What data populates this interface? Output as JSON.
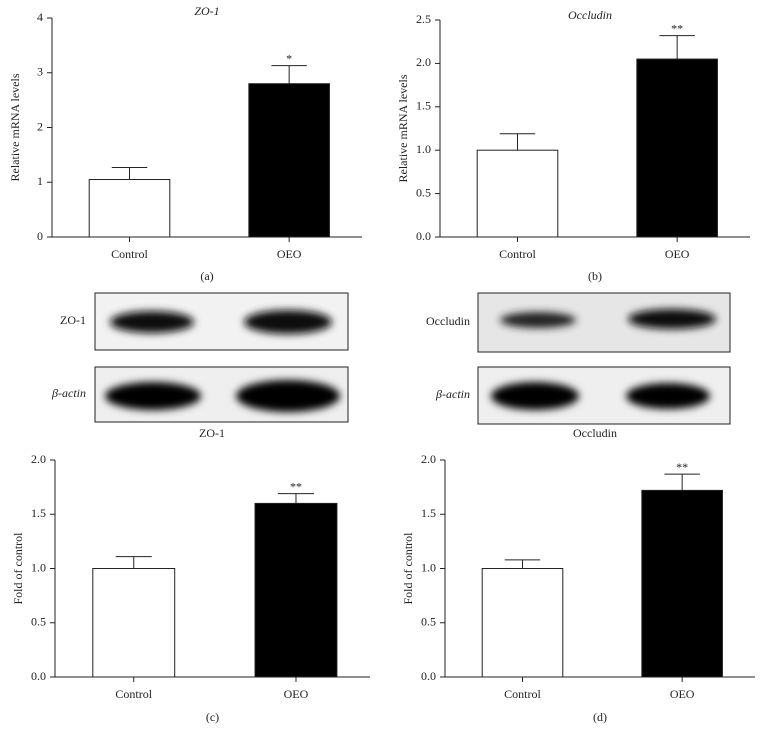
{
  "chart_data": [
    {
      "type": "bar",
      "title": "ZO-1",
      "title_italic": true,
      "ylabel": "Relative mRNA levels",
      "categories": [
        "Control",
        "OEO"
      ],
      "values": [
        1.05,
        2.8
      ],
      "errors": [
        0.22,
        0.33
      ],
      "colors": [
        "#ffffff",
        "#000000"
      ],
      "annotation": "*",
      "ylim": [
        0,
        4
      ],
      "yticks": [
        0,
        1,
        2,
        3,
        4
      ],
      "panel": "(a)"
    },
    {
      "type": "bar",
      "title": "Occludin",
      "title_italic": true,
      "ylabel": "Relative mRNA levels",
      "categories": [
        "Control",
        "OEO"
      ],
      "values": [
        1.0,
        2.05
      ],
      "errors": [
        0.19,
        0.27
      ],
      "colors": [
        "#ffffff",
        "#000000"
      ],
      "annotation": "**",
      "ylim": [
        0,
        2.5
      ],
      "yticks": [
        {
          "value": 0,
          "label": "0.0"
        },
        0.5,
        {
          "value": 1,
          "label": "1.0"
        },
        1.5,
        {
          "value": 2,
          "label": "2.0"
        },
        2.5
      ],
      "panel": "(b)"
    },
    {
      "type": "bar",
      "title": "ZO-1",
      "title_italic": false,
      "ylabel": "Fold of control",
      "categories": [
        "Control",
        "OEO"
      ],
      "values": [
        1.0,
        1.6
      ],
      "errors": [
        0.11,
        0.09
      ],
      "colors": [
        "#ffffff",
        "#000000"
      ],
      "annotation": "**",
      "ylim": [
        0,
        2
      ],
      "yticks": [
        {
          "value": 0,
          "label": "0.0"
        },
        0.5,
        {
          "value": 1,
          "label": "1.0"
        },
        1.5,
        {
          "value": 2,
          "label": "2.0"
        }
      ],
      "panel": "(c)"
    },
    {
      "type": "bar",
      "title": "Occludin",
      "title_italic": false,
      "ylabel": "Fold of control",
      "categories": [
        "Control",
        "OEO"
      ],
      "values": [
        1.0,
        1.72
      ],
      "errors": [
        0.08,
        0.15
      ],
      "colors": [
        "#ffffff",
        "#000000"
      ],
      "annotation": "**",
      "ylim": [
        0,
        2
      ],
      "yticks": [
        {
          "value": 0,
          "label": "0.0"
        },
        0.5,
        {
          "value": 1,
          "label": "1.0"
        },
        1.5,
        {
          "value": 2,
          "label": "2.0"
        }
      ],
      "panel": "(d)"
    }
  ],
  "blots": [
    {
      "labels": [
        "ZO-1",
        "β-actin"
      ]
    },
    {
      "labels": [
        "Occludin",
        "β-actin"
      ]
    }
  ]
}
